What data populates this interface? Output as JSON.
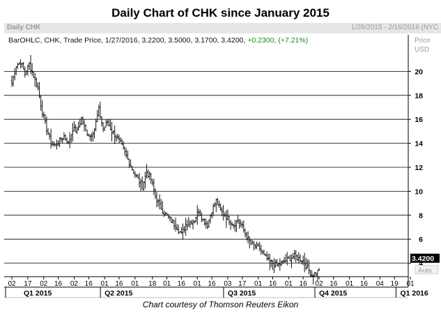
{
  "title": "Daily Chart of CHK since January 2015",
  "header": {
    "symbol": "Daily CHK",
    "date_range": "1/28/2015 - 2/16/2016 (NYC"
  },
  "legend": {
    "series": "BarOHLC, CHK, Trade Price, 1/27/2016, 3.2200, 3.5000, 3.1700, 3.4200,",
    "change": "+0.2300, (+7.21%)"
  },
  "credit": "Chart courtesy of Thomson Reuters Eikon",
  "axis": {
    "price_label": "Price",
    "currency_label": "USD",
    "auto_label": "Auto"
  },
  "colors": {
    "bars": "#111111",
    "grid": "#000000",
    "last_price_bg": "#000000",
    "change_up": "#1b8a1b"
  },
  "chart_data": {
    "type": "ohlc",
    "title": "Daily Chart of CHK since January 2015",
    "symbol": "CHK",
    "ylim": [
      2,
      22
    ],
    "y_ticks": [
      4,
      6,
      8,
      10,
      12,
      14,
      16,
      18,
      20
    ],
    "last_price": "3.4200",
    "grid": "horizontal",
    "x_ticks": [
      "02",
      "17",
      "02",
      "16",
      "02",
      "16",
      "01",
      "16",
      "01",
      "18",
      "01",
      "16",
      "01",
      "16",
      "03",
      "17",
      "01",
      "16",
      "01",
      "16",
      "02",
      "16",
      "01",
      "16",
      "04",
      "19",
      "01"
    ],
    "x_tick_positions_index": [
      0,
      11,
      22,
      32,
      43,
      53,
      64,
      74,
      85,
      97,
      107,
      117,
      128,
      138,
      149,
      159,
      170,
      180,
      191,
      201,
      212,
      222,
      233,
      243,
      254,
      264,
      275
    ],
    "quarters": [
      {
        "label": "Q1 2015",
        "index": 3
      },
      {
        "label": "Q2 2015",
        "index": 64
      },
      {
        "label": "Q3 2015",
        "index": 149
      },
      {
        "label": "Q4 2015",
        "index": 212
      },
      {
        "label": "Q1 2016",
        "index": 268
      }
    ],
    "path_anchors": [
      [
        0,
        19.0
      ],
      [
        3,
        20.5
      ],
      [
        6,
        20.8
      ],
      [
        9,
        19.8
      ],
      [
        12,
        20.6
      ],
      [
        15,
        19.6
      ],
      [
        18,
        18.6
      ],
      [
        21,
        16.6
      ],
      [
        24,
        15.2
      ],
      [
        27,
        14.0
      ],
      [
        30,
        13.8
      ],
      [
        33,
        14.2
      ],
      [
        36,
        14.6
      ],
      [
        39,
        14.0
      ],
      [
        42,
        15.2
      ],
      [
        45,
        15.0
      ],
      [
        48,
        16.1
      ],
      [
        51,
        15.0
      ],
      [
        54,
        14.6
      ],
      [
        57,
        15.2
      ],
      [
        60,
        16.8
      ],
      [
        63,
        15.2
      ],
      [
        66,
        15.8
      ],
      [
        69,
        15.0
      ],
      [
        72,
        14.6
      ],
      [
        75,
        14.0
      ],
      [
        78,
        13.2
      ],
      [
        81,
        12.4
      ],
      [
        84,
        11.6
      ],
      [
        87,
        11.0
      ],
      [
        90,
        10.4
      ],
      [
        93,
        11.6
      ],
      [
        96,
        11.0
      ],
      [
        99,
        9.6
      ],
      [
        102,
        8.8
      ],
      [
        105,
        8.2
      ],
      [
        108,
        7.8
      ],
      [
        111,
        7.4
      ],
      [
        114,
        7.0
      ],
      [
        117,
        6.4
      ],
      [
        120,
        7.2
      ],
      [
        123,
        7.4
      ],
      [
        126,
        7.6
      ],
      [
        129,
        8.4
      ],
      [
        132,
        7.6
      ],
      [
        135,
        7.2
      ],
      [
        138,
        8.4
      ],
      [
        141,
        9.2
      ],
      [
        144,
        8.4
      ],
      [
        147,
        8.0
      ],
      [
        150,
        7.6
      ],
      [
        153,
        7.2
      ],
      [
        156,
        7.6
      ],
      [
        159,
        7.0
      ],
      [
        162,
        6.2
      ],
      [
        165,
        5.6
      ],
      [
        168,
        5.4
      ],
      [
        171,
        5.2
      ],
      [
        174,
        4.6
      ],
      [
        177,
        4.2
      ],
      [
        180,
        4.0
      ],
      [
        183,
        3.8
      ],
      [
        186,
        4.0
      ],
      [
        189,
        4.2
      ],
      [
        192,
        4.4
      ],
      [
        195,
        4.6
      ],
      [
        198,
        4.4
      ],
      [
        201,
        4.2
      ],
      [
        204,
        3.6
      ],
      [
        207,
        3.0
      ],
      [
        210,
        3.2
      ],
      [
        212,
        3.42
      ]
    ]
  }
}
